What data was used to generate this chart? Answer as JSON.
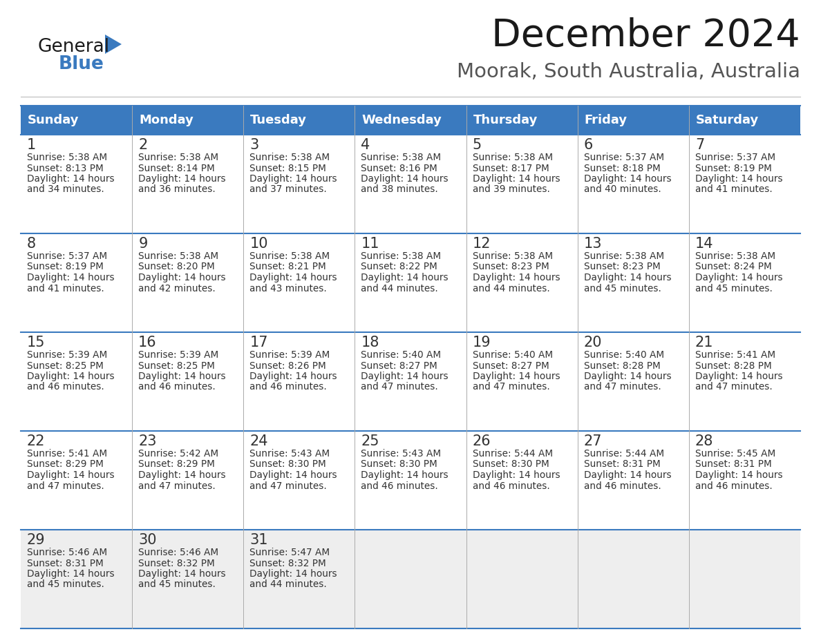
{
  "title": "December 2024",
  "subtitle": "Moorak, South Australia, Australia",
  "header_color": "#3a7abf",
  "header_text_color": "#ffffff",
  "day_names": [
    "Sunday",
    "Monday",
    "Tuesday",
    "Wednesday",
    "Thursday",
    "Friday",
    "Saturday"
  ],
  "row_bg_colors": [
    "#ffffff",
    "#ffffff",
    "#ffffff",
    "#ffffff",
    "#eeeeee"
  ],
  "border_color": "#3a7abf",
  "cell_border_color": "#aaaaaa",
  "text_color": "#333333",
  "title_color": "#1a1a1a",
  "subtitle_color": "#555555",
  "logo_color_general": "#1a1a1a",
  "logo_color_blue": "#3a7abf",
  "logo_triangle_color": "#3a7abf",
  "days": [
    {
      "day": 1,
      "col": 0,
      "row": 0,
      "sunrise": "5:38 AM",
      "sunset": "8:13 PM",
      "dl_hours": 14,
      "dl_minutes": 34
    },
    {
      "day": 2,
      "col": 1,
      "row": 0,
      "sunrise": "5:38 AM",
      "sunset": "8:14 PM",
      "dl_hours": 14,
      "dl_minutes": 36
    },
    {
      "day": 3,
      "col": 2,
      "row": 0,
      "sunrise": "5:38 AM",
      "sunset": "8:15 PM",
      "dl_hours": 14,
      "dl_minutes": 37
    },
    {
      "day": 4,
      "col": 3,
      "row": 0,
      "sunrise": "5:38 AM",
      "sunset": "8:16 PM",
      "dl_hours": 14,
      "dl_minutes": 38
    },
    {
      "day": 5,
      "col": 4,
      "row": 0,
      "sunrise": "5:38 AM",
      "sunset": "8:17 PM",
      "dl_hours": 14,
      "dl_minutes": 39
    },
    {
      "day": 6,
      "col": 5,
      "row": 0,
      "sunrise": "5:37 AM",
      "sunset": "8:18 PM",
      "dl_hours": 14,
      "dl_minutes": 40
    },
    {
      "day": 7,
      "col": 6,
      "row": 0,
      "sunrise": "5:37 AM",
      "sunset": "8:19 PM",
      "dl_hours": 14,
      "dl_minutes": 41
    },
    {
      "day": 8,
      "col": 0,
      "row": 1,
      "sunrise": "5:37 AM",
      "sunset": "8:19 PM",
      "dl_hours": 14,
      "dl_minutes": 41
    },
    {
      "day": 9,
      "col": 1,
      "row": 1,
      "sunrise": "5:38 AM",
      "sunset": "8:20 PM",
      "dl_hours": 14,
      "dl_minutes": 42
    },
    {
      "day": 10,
      "col": 2,
      "row": 1,
      "sunrise": "5:38 AM",
      "sunset": "8:21 PM",
      "dl_hours": 14,
      "dl_minutes": 43
    },
    {
      "day": 11,
      "col": 3,
      "row": 1,
      "sunrise": "5:38 AM",
      "sunset": "8:22 PM",
      "dl_hours": 14,
      "dl_minutes": 44
    },
    {
      "day": 12,
      "col": 4,
      "row": 1,
      "sunrise": "5:38 AM",
      "sunset": "8:23 PM",
      "dl_hours": 14,
      "dl_minutes": 44
    },
    {
      "day": 13,
      "col": 5,
      "row": 1,
      "sunrise": "5:38 AM",
      "sunset": "8:23 PM",
      "dl_hours": 14,
      "dl_minutes": 45
    },
    {
      "day": 14,
      "col": 6,
      "row": 1,
      "sunrise": "5:38 AM",
      "sunset": "8:24 PM",
      "dl_hours": 14,
      "dl_minutes": 45
    },
    {
      "day": 15,
      "col": 0,
      "row": 2,
      "sunrise": "5:39 AM",
      "sunset": "8:25 PM",
      "dl_hours": 14,
      "dl_minutes": 46
    },
    {
      "day": 16,
      "col": 1,
      "row": 2,
      "sunrise": "5:39 AM",
      "sunset": "8:25 PM",
      "dl_hours": 14,
      "dl_minutes": 46
    },
    {
      "day": 17,
      "col": 2,
      "row": 2,
      "sunrise": "5:39 AM",
      "sunset": "8:26 PM",
      "dl_hours": 14,
      "dl_minutes": 46
    },
    {
      "day": 18,
      "col": 3,
      "row": 2,
      "sunrise": "5:40 AM",
      "sunset": "8:27 PM",
      "dl_hours": 14,
      "dl_minutes": 47
    },
    {
      "day": 19,
      "col": 4,
      "row": 2,
      "sunrise": "5:40 AM",
      "sunset": "8:27 PM",
      "dl_hours": 14,
      "dl_minutes": 47
    },
    {
      "day": 20,
      "col": 5,
      "row": 2,
      "sunrise": "5:40 AM",
      "sunset": "8:28 PM",
      "dl_hours": 14,
      "dl_minutes": 47
    },
    {
      "day": 21,
      "col": 6,
      "row": 2,
      "sunrise": "5:41 AM",
      "sunset": "8:28 PM",
      "dl_hours": 14,
      "dl_minutes": 47
    },
    {
      "day": 22,
      "col": 0,
      "row": 3,
      "sunrise": "5:41 AM",
      "sunset": "8:29 PM",
      "dl_hours": 14,
      "dl_minutes": 47
    },
    {
      "day": 23,
      "col": 1,
      "row": 3,
      "sunrise": "5:42 AM",
      "sunset": "8:29 PM",
      "dl_hours": 14,
      "dl_minutes": 47
    },
    {
      "day": 24,
      "col": 2,
      "row": 3,
      "sunrise": "5:43 AM",
      "sunset": "8:30 PM",
      "dl_hours": 14,
      "dl_minutes": 47
    },
    {
      "day": 25,
      "col": 3,
      "row": 3,
      "sunrise": "5:43 AM",
      "sunset": "8:30 PM",
      "dl_hours": 14,
      "dl_minutes": 46
    },
    {
      "day": 26,
      "col": 4,
      "row": 3,
      "sunrise": "5:44 AM",
      "sunset": "8:30 PM",
      "dl_hours": 14,
      "dl_minutes": 46
    },
    {
      "day": 27,
      "col": 5,
      "row": 3,
      "sunrise": "5:44 AM",
      "sunset": "8:31 PM",
      "dl_hours": 14,
      "dl_minutes": 46
    },
    {
      "day": 28,
      "col": 6,
      "row": 3,
      "sunrise": "5:45 AM",
      "sunset": "8:31 PM",
      "dl_hours": 14,
      "dl_minutes": 46
    },
    {
      "day": 29,
      "col": 0,
      "row": 4,
      "sunrise": "5:46 AM",
      "sunset": "8:31 PM",
      "dl_hours": 14,
      "dl_minutes": 45
    },
    {
      "day": 30,
      "col": 1,
      "row": 4,
      "sunrise": "5:46 AM",
      "sunset": "8:32 PM",
      "dl_hours": 14,
      "dl_minutes": 45
    },
    {
      "day": 31,
      "col": 2,
      "row": 4,
      "sunrise": "5:47 AM",
      "sunset": "8:32 PM",
      "dl_hours": 14,
      "dl_minutes": 44
    }
  ]
}
